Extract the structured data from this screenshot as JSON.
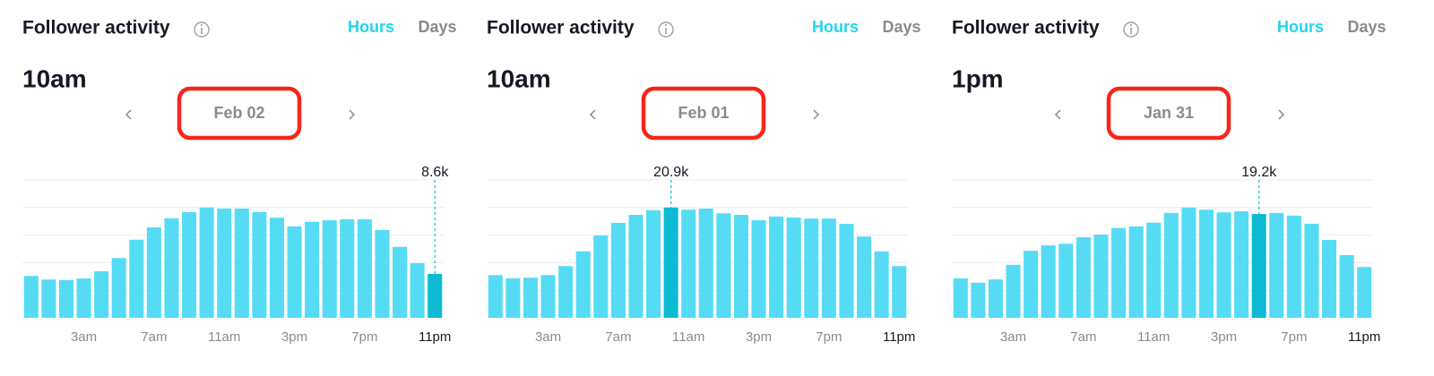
{
  "chart_data": [
    {
      "type": "bar",
      "title": "Follower activity",
      "tabs": [
        "Hours",
        "Days"
      ],
      "time": "10am",
      "date": "Feb 02",
      "categories": [
        null,
        null,
        null,
        "3am",
        null,
        null,
        null,
        "7am",
        null,
        null,
        null,
        "11am",
        null,
        null,
        null,
        "3pm",
        null,
        null,
        null,
        "7pm",
        null,
        null,
        null,
        "11pm"
      ],
      "values": [
        8200,
        7500,
        7400,
        7700,
        9100,
        11700,
        15300,
        17700,
        19500,
        20700,
        21600,
        21400,
        21400,
        20700,
        19600,
        17900,
        18800,
        19100,
        19300,
        19300,
        17200,
        13900,
        10700,
        8600
      ],
      "value_labels": [
        null,
        null,
        null,
        null,
        null,
        null,
        null,
        null,
        null,
        null,
        null,
        null,
        null,
        null,
        null,
        null,
        null,
        null,
        null,
        null,
        null,
        null,
        null,
        "8.6k"
      ],
      "color": "#55dcf4",
      "highlight_color": "#0cbad3",
      "ylim": [
        0,
        27000
      ],
      "yticks": [
        5400,
        10800,
        16200,
        21600,
        27000
      ],
      "grid": true
    },
    {
      "type": "bar",
      "title": "Follower activity",
      "tabs": [
        "Hours",
        "Days"
      ],
      "time": "10am",
      "date": "Feb 01",
      "categories": [
        null,
        null,
        null,
        "3am",
        null,
        null,
        null,
        "7am",
        null,
        null,
        null,
        "11am",
        null,
        null,
        null,
        "3pm",
        null,
        null,
        null,
        "7pm",
        null,
        null,
        null,
        "11pm"
      ],
      "values": [
        8100,
        7500,
        7600,
        8100,
        9800,
        12600,
        15600,
        18000,
        19500,
        20400,
        20900,
        20500,
        20700,
        19800,
        19500,
        18500,
        19200,
        19000,
        18800,
        18800,
        17800,
        15400,
        12600,
        9800
      ],
      "value_labels": [
        null,
        null,
        null,
        null,
        null,
        null,
        null,
        null,
        null,
        null,
        "20.9k",
        null,
        null,
        null,
        null,
        null,
        null,
        null,
        null,
        null,
        null,
        null,
        null,
        null
      ],
      "color": "#55dcf4",
      "highlight_color": "#0cbad3",
      "ylim": [
        0,
        26125
      ],
      "yticks": [
        5225,
        10450,
        15675,
        20900,
        26125
      ],
      "grid": true
    },
    {
      "type": "bar",
      "title": "Follower activity",
      "tabs": [
        "Hours",
        "Days"
      ],
      "time": "1pm",
      "date": "Jan 31",
      "categories": [
        null,
        null,
        null,
        "3am",
        null,
        null,
        null,
        "7am",
        null,
        null,
        null,
        "11am",
        null,
        null,
        null,
        "3pm",
        null,
        null,
        null,
        "7pm",
        null,
        null,
        null,
        "11pm"
      ],
      "values": [
        7300,
        6500,
        7100,
        9800,
        12400,
        13400,
        13700,
        14900,
        15400,
        16600,
        16900,
        17600,
        19400,
        20400,
        20000,
        19500,
        19700,
        19200,
        19400,
        18900,
        17400,
        14400,
        11600,
        9400
      ],
      "value_labels": [
        null,
        null,
        null,
        null,
        null,
        null,
        null,
        null,
        null,
        null,
        null,
        null,
        null,
        null,
        null,
        null,
        null,
        "19.2k",
        null,
        null,
        null,
        null,
        null,
        null
      ],
      "color": "#55dcf4",
      "highlight_color": "#0cbad3",
      "ylim": [
        0,
        25500
      ],
      "yticks": [
        5100,
        10200,
        15300,
        20400,
        25500
      ],
      "grid": true
    }
  ]
}
